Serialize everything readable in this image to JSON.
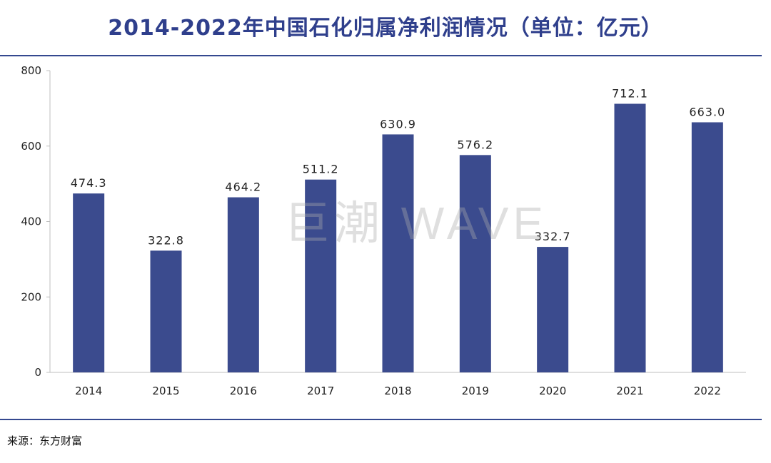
{
  "title": "2014-2022年中国石化归属净利润情况（单位：亿元）",
  "source": "来源：东方财富",
  "watermark": "巨潮 WAVE",
  "colors": {
    "bar": "#3b4b8e",
    "title": "#2f3f8c",
    "rule": "#34488f"
  },
  "chart_data": {
    "type": "bar",
    "title": "2014-2022年中国石化归属净利润情况（单位：亿元）",
    "xlabel": "",
    "ylabel": "",
    "categories": [
      "2014",
      "2015",
      "2016",
      "2017",
      "2018",
      "2019",
      "2020",
      "2021",
      "2022"
    ],
    "values": [
      474.3,
      322.8,
      464.2,
      511.2,
      630.9,
      576.2,
      332.7,
      712.1,
      663.0
    ],
    "value_labels": [
      "474.3",
      "322.8",
      "464.2",
      "511.2",
      "630.9",
      "576.2",
      "332.7",
      "712.1",
      "663.0"
    ],
    "ylim": [
      0,
      800
    ],
    "yticks": [
      0,
      200,
      400,
      600,
      800
    ],
    "grid": false,
    "legend": "none"
  }
}
